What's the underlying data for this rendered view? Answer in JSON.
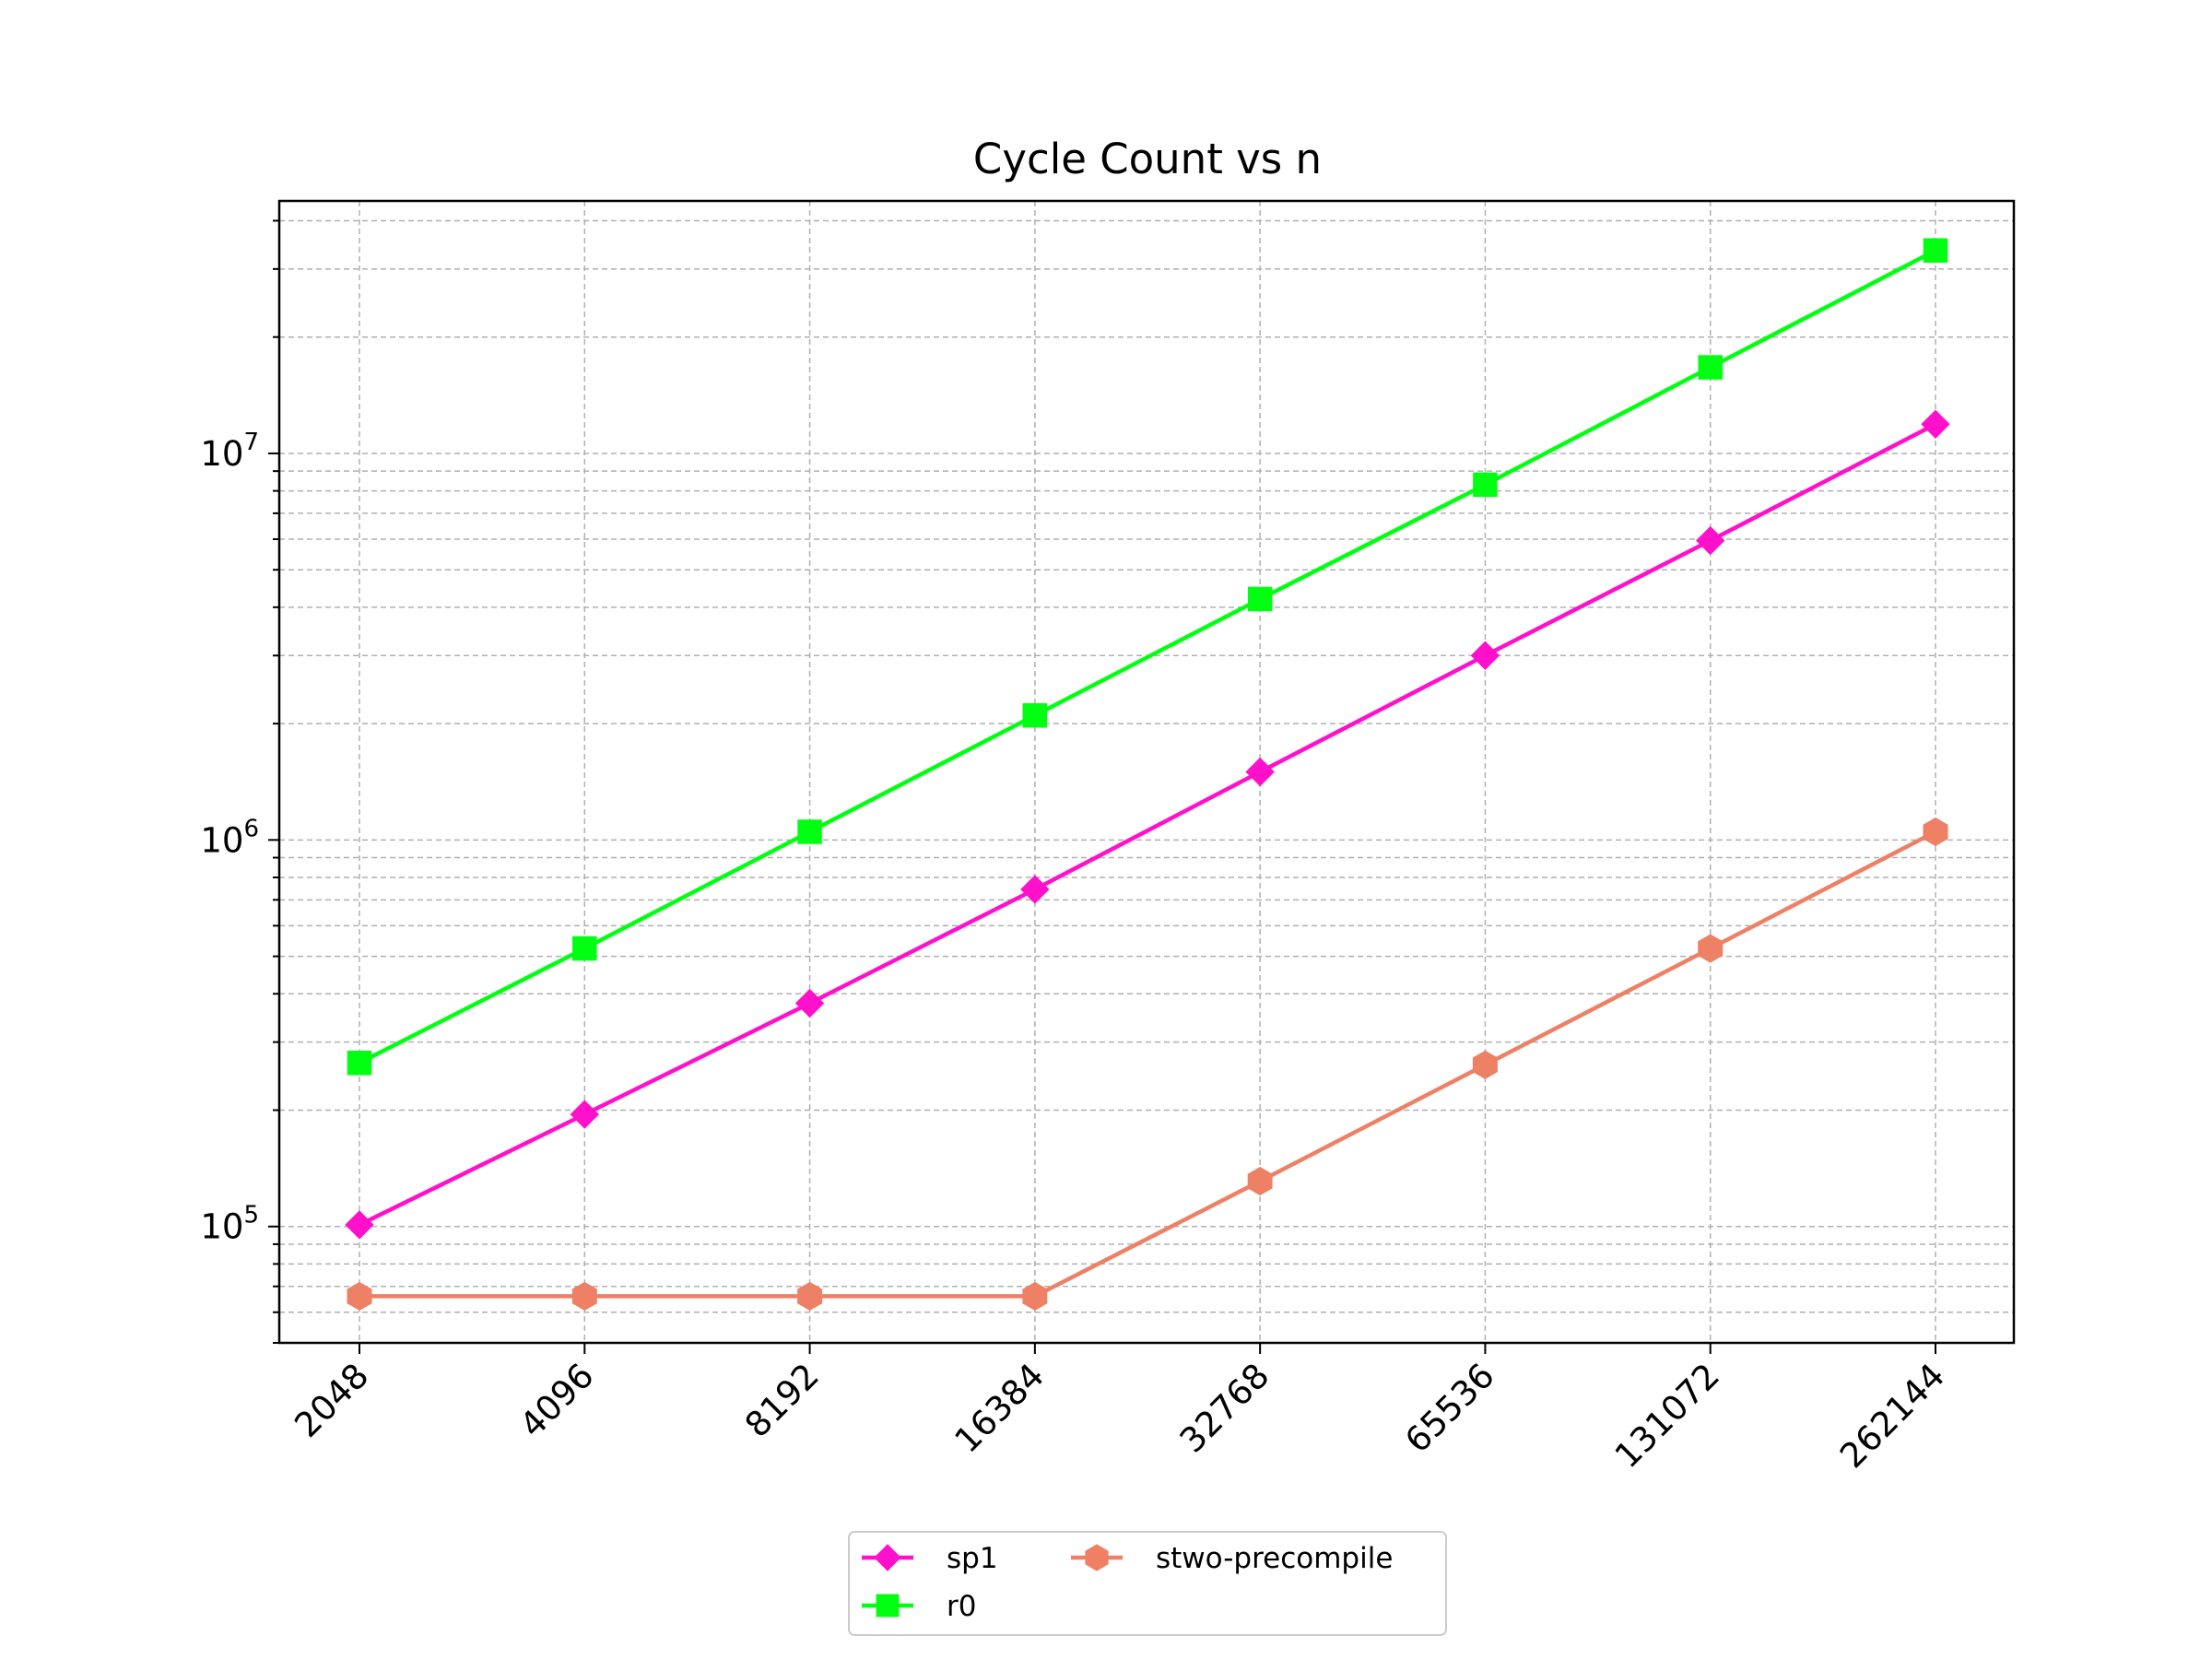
{
  "chart_data": {
    "type": "line",
    "title": "Cycle Count vs n",
    "xlabel": "",
    "ylabel": "",
    "categories": [
      "2048",
      "4096",
      "8192",
      "16384",
      "32768",
      "65536",
      "131072",
      "262144"
    ],
    "yscale": "log",
    "ylim": [
      50000,
      45000000
    ],
    "y_ticks": [
      {
        "value": 100000,
        "base": "10",
        "exp": "5"
      },
      {
        "value": 1000000,
        "base": "10",
        "exp": "6"
      },
      {
        "value": 10000000,
        "base": "10",
        "exp": "7"
      }
    ],
    "grid": true,
    "legend_position": "bottom-center",
    "series": [
      {
        "name": "sp1",
        "color": "#ff11cc",
        "marker": "diamond",
        "values": [
          101000,
          195000,
          378000,
          745000,
          1500000,
          3000000,
          5950000,
          11900000
        ]
      },
      {
        "name": "r0",
        "color": "#00ff11",
        "marker": "square",
        "values": [
          265000,
          524000,
          1050000,
          2100000,
          4200000,
          8300000,
          16700000,
          33500000
        ]
      },
      {
        "name": "stwo-precompile",
        "color": "#ee8066",
        "marker": "hexagon",
        "values": [
          66000,
          66000,
          66000,
          66000,
          131000,
          262000,
          524000,
          1050000
        ]
      }
    ]
  }
}
